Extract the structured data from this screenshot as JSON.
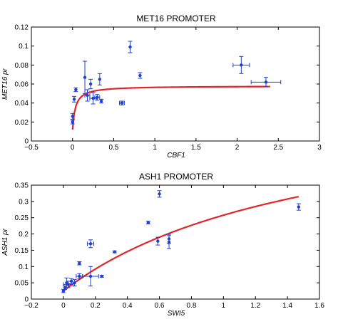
{
  "chart_data": [
    {
      "type": "scatter",
      "title": "MET16 PROMOTER",
      "xlabel": "CBF1",
      "ylabel": "MET16 pr",
      "xlim": [
        -0.5,
        3
      ],
      "ylim": [
        0,
        0.12
      ],
      "xticks": [
        "−0.5",
        "0",
        "0.5",
        "1",
        "1.5",
        "2",
        "2.5",
        "3"
      ],
      "yticks": [
        "0",
        "0.02",
        "0.04",
        "0.06",
        "0.08",
        "0.1",
        "0.12"
      ],
      "grid": false,
      "colors": {
        "points": "#1f3fd0",
        "fit": "#e4232b"
      },
      "points": [
        {
          "x": 0.0,
          "y": 0.026,
          "yerr": 0.003
        },
        {
          "x": 0.0,
          "y": 0.02,
          "yerr": 0.002
        },
        {
          "x": 0.02,
          "y": 0.044,
          "yerr": 0.003
        },
        {
          "x": 0.04,
          "y": 0.054,
          "yerr": 0.002
        },
        {
          "x": 0.15,
          "y": 0.067,
          "yerr": 0.017
        },
        {
          "x": 0.18,
          "y": 0.048,
          "yerr": 0.006,
          "xerr": 0.03
        },
        {
          "x": 0.22,
          "y": 0.06,
          "yerr": 0.005
        },
        {
          "x": 0.25,
          "y": 0.045,
          "yerr": 0.006,
          "xerr": 0.04
        },
        {
          "x": 0.3,
          "y": 0.046,
          "yerr": 0.003,
          "xerr": 0.03
        },
        {
          "x": 0.33,
          "y": 0.065,
          "yerr": 0.006
        },
        {
          "x": 0.35,
          "y": 0.042,
          "yerr": 0.002
        },
        {
          "x": 0.6,
          "y": 0.04,
          "yerr": 0.002,
          "xerr": 0.03
        },
        {
          "x": 0.7,
          "y": 0.099,
          "yerr": 0.006
        },
        {
          "x": 0.82,
          "y": 0.069,
          "yerr": 0.003
        },
        {
          "x": 2.05,
          "y": 0.08,
          "yerr": 0.009,
          "xerr": 0.1
        },
        {
          "x": 2.35,
          "y": 0.062,
          "yerr": 0.005,
          "xerr": 0.18
        }
      ],
      "fit": {
        "vmax": 0.058,
        "k": 0.035,
        "y0": 0.012,
        "x_range": [
          0,
          2.4
        ]
      }
    },
    {
      "type": "scatter",
      "title": "ASH1 PROMOTER",
      "xlabel": "SWI5",
      "ylabel": "ASH1 pr",
      "xlim": [
        -0.2,
        1.6
      ],
      "ylim": [
        0,
        0.35
      ],
      "xticks": [
        "−0.2",
        "0",
        "0.2",
        "0.4",
        "0.6",
        "0.8",
        "1",
        "1.2",
        "1.4",
        "1.6"
      ],
      "yticks": [
        "0",
        "0.05",
        "0.1",
        "0.15",
        "0.2",
        "0.25",
        "0.3",
        "0.35"
      ],
      "grid": false,
      "colors": {
        "points": "#1f3fd0",
        "fit": "#e4232b"
      },
      "points": [
        {
          "x": 0.0,
          "y": 0.025,
          "yerr": 0.005
        },
        {
          "x": 0.01,
          "y": 0.035,
          "yerr": 0.006
        },
        {
          "x": 0.02,
          "y": 0.05,
          "yerr": 0.015
        },
        {
          "x": 0.03,
          "y": 0.045,
          "yerr": 0.01,
          "xerr": 0.03
        },
        {
          "x": 0.05,
          "y": 0.055,
          "yerr": 0.008
        },
        {
          "x": 0.07,
          "y": 0.05,
          "yerr": 0.01
        },
        {
          "x": 0.1,
          "y": 0.07,
          "yerr": 0.008,
          "xerr": 0.02
        },
        {
          "x": 0.1,
          "y": 0.11,
          "yerr": 0.005
        },
        {
          "x": 0.17,
          "y": 0.07,
          "yerr": 0.03,
          "xerr": 0.05
        },
        {
          "x": 0.17,
          "y": 0.17,
          "yerr": 0.012,
          "xerr": 0.02
        },
        {
          "x": 0.24,
          "y": 0.07,
          "yerr": 0.003
        },
        {
          "x": 0.32,
          "y": 0.145,
          "yerr": 0.003
        },
        {
          "x": 0.53,
          "y": 0.235,
          "yerr": 0.004
        },
        {
          "x": 0.59,
          "y": 0.178,
          "yerr": 0.012
        },
        {
          "x": 0.6,
          "y": 0.323,
          "yerr": 0.01
        },
        {
          "x": 0.66,
          "y": 0.185,
          "yerr": 0.014
        },
        {
          "x": 0.66,
          "y": 0.175,
          "yerr": 0.02
        },
        {
          "x": 1.47,
          "y": 0.283,
          "yerr": 0.01
        }
      ],
      "fit": {
        "vmax": 0.63,
        "k": 1.6,
        "y0": 0.025,
        "x_range": [
          0,
          1.47
        ]
      }
    }
  ]
}
